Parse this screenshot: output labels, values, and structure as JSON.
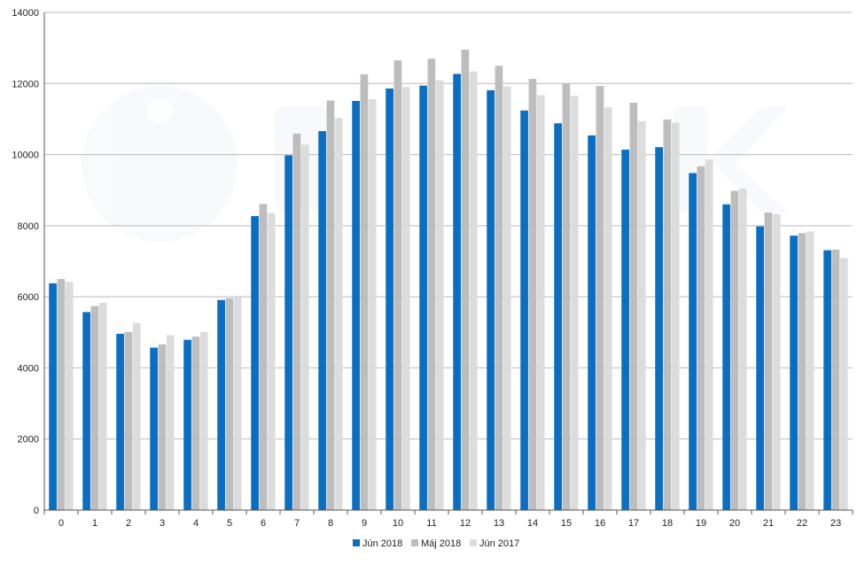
{
  "chart_data": {
    "type": "bar",
    "categories": [
      "0",
      "1",
      "2",
      "3",
      "4",
      "5",
      "6",
      "7",
      "8",
      "9",
      "10",
      "11",
      "12",
      "13",
      "14",
      "15",
      "16",
      "17",
      "18",
      "19",
      "20",
      "21",
      "22",
      "23"
    ],
    "series": [
      {
        "name": "Jún 2018",
        "color": "#0a6fc2",
        "values": [
          6380,
          5570,
          4960,
          4570,
          4790,
          5910,
          8270,
          9980,
          10660,
          11510,
          11860,
          11940,
          12270,
          11810,
          11240,
          10880,
          10540,
          10140,
          10210,
          9480,
          8600,
          7980,
          7720,
          7310
        ]
      },
      {
        "name": "Máj 2018",
        "color": "#bdbdbd",
        "values": [
          6500,
          5740,
          5010,
          4660,
          4880,
          5960,
          8610,
          10590,
          11520,
          12260,
          12650,
          12700,
          12950,
          12500,
          12130,
          11990,
          11930,
          11460,
          10990,
          9670,
          8980,
          8370,
          7790,
          7330
        ]
      },
      {
        "name": "Jún 2017",
        "color": "#dcdcdc",
        "values": [
          6420,
          5830,
          5260,
          4920,
          5010,
          5980,
          8360,
          10280,
          11030,
          11560,
          11900,
          12090,
          12340,
          11920,
          11670,
          11650,
          11330,
          10940,
          10900,
          9860,
          9040,
          8330,
          7840,
          7090
        ]
      }
    ],
    "y_ticks": [
      "0",
      "2000",
      "4000",
      "6000",
      "8000",
      "10000",
      "12000",
      "14000"
    ],
    "ylim": [
      0,
      14000
    ],
    "grid": true,
    "legend_position": "bottom-center"
  }
}
